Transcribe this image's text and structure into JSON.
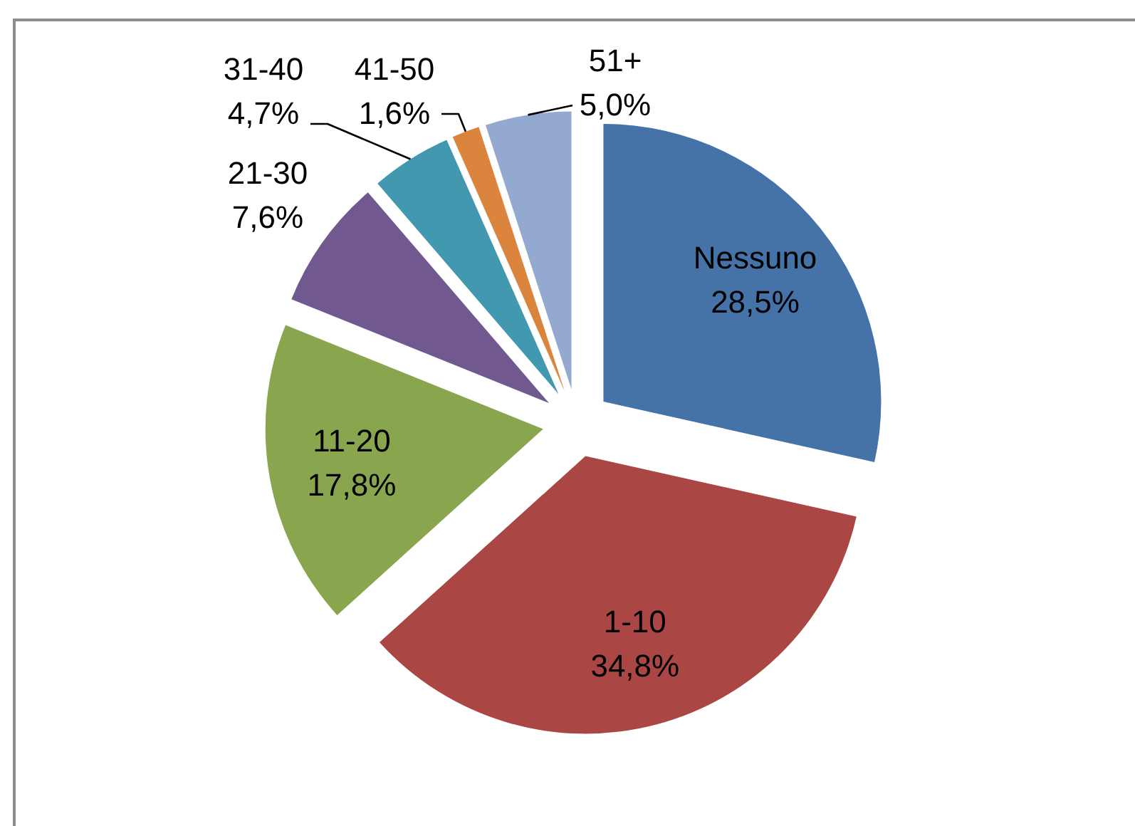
{
  "chart_data": {
    "type": "pie",
    "categories": [
      "Nessuno",
      "1-10",
      "11-20",
      "21-30",
      "31-40",
      "41-50",
      "51+"
    ],
    "values": [
      28.5,
      34.8,
      17.8,
      7.6,
      4.7,
      1.6,
      5.0
    ],
    "colors": [
      "#4572a7",
      "#aa4643",
      "#89a54e",
      "#71588f",
      "#4198af",
      "#db843d",
      "#93a9cf"
    ],
    "value_labels": [
      "28,5%",
      "34,8%",
      "17,8%",
      "7,6%",
      "4,7%",
      "1,6%",
      "5,0%"
    ]
  }
}
